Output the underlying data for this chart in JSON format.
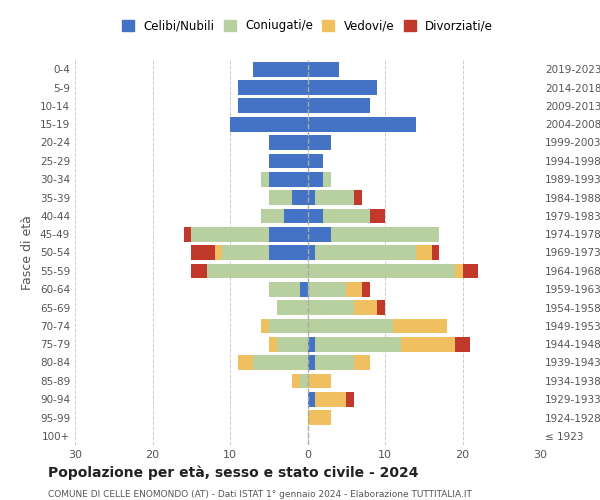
{
  "age_groups": [
    "100+",
    "95-99",
    "90-94",
    "85-89",
    "80-84",
    "75-79",
    "70-74",
    "65-69",
    "60-64",
    "55-59",
    "50-54",
    "45-49",
    "40-44",
    "35-39",
    "30-34",
    "25-29",
    "20-24",
    "15-19",
    "10-14",
    "5-9",
    "0-4"
  ],
  "birth_years": [
    "≤ 1923",
    "1924-1928",
    "1929-1933",
    "1934-1938",
    "1939-1943",
    "1944-1948",
    "1949-1953",
    "1954-1958",
    "1959-1963",
    "1964-1968",
    "1969-1973",
    "1974-1978",
    "1979-1983",
    "1984-1988",
    "1989-1993",
    "1994-1998",
    "1999-2003",
    "2004-2008",
    "2009-2013",
    "2014-2018",
    "2019-2023"
  ],
  "colors": {
    "celibi": "#4472c4",
    "coniugati": "#b8cfa0",
    "vedovi": "#f0c060",
    "divorziati": "#c0392b"
  },
  "male": {
    "celibi": [
      0,
      0,
      0,
      0,
      0,
      0,
      0,
      0,
      1,
      0,
      5,
      5,
      3,
      2,
      5,
      5,
      5,
      10,
      9,
      9,
      7
    ],
    "coniugati": [
      0,
      0,
      0,
      1,
      7,
      4,
      5,
      4,
      4,
      13,
      6,
      10,
      3,
      3,
      1,
      0,
      0,
      0,
      0,
      0,
      0
    ],
    "vedovi": [
      0,
      0,
      0,
      1,
      2,
      1,
      1,
      0,
      0,
      0,
      1,
      0,
      0,
      0,
      0,
      0,
      0,
      0,
      0,
      0,
      0
    ],
    "divorziati": [
      0,
      0,
      0,
      0,
      0,
      0,
      0,
      0,
      0,
      2,
      3,
      1,
      0,
      0,
      0,
      0,
      0,
      0,
      0,
      0,
      0
    ]
  },
  "female": {
    "celibi": [
      0,
      0,
      1,
      0,
      1,
      1,
      0,
      0,
      0,
      0,
      1,
      3,
      2,
      1,
      2,
      2,
      3,
      14,
      8,
      9,
      4
    ],
    "coniugati": [
      0,
      0,
      0,
      0,
      5,
      11,
      11,
      6,
      5,
      19,
      13,
      14,
      6,
      5,
      1,
      0,
      0,
      0,
      0,
      0,
      0
    ],
    "vedovi": [
      0,
      3,
      4,
      3,
      2,
      7,
      7,
      3,
      2,
      1,
      2,
      0,
      0,
      0,
      0,
      0,
      0,
      0,
      0,
      0,
      0
    ],
    "divorziati": [
      0,
      0,
      1,
      0,
      0,
      2,
      0,
      1,
      1,
      2,
      1,
      0,
      2,
      1,
      0,
      0,
      0,
      0,
      0,
      0,
      0
    ]
  },
  "xlim": 30,
  "title": "Popolazione per età, sesso e stato civile - 2024",
  "subtitle": "COMUNE DI CELLE ENOMONDO (AT) - Dati ISTAT 1° gennaio 2024 - Elaborazione TUTTITALIA.IT",
  "ylabel_left": "Fasce di età",
  "legend_labels": [
    "Celibi/Nubili",
    "Coniugati/e",
    "Vedovi/e",
    "Divorziati/e"
  ],
  "bg_color": "#ffffff",
  "grid_color": "#cccccc"
}
